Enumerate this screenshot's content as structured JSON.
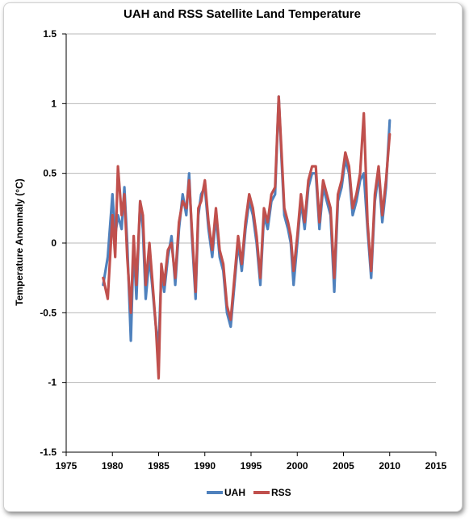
{
  "chart_data": {
    "type": "line",
    "title": "UAH and RSS Satellite Land Temperature",
    "xlabel": "",
    "ylabel": "Temperature Anomnaly (°C)",
    "xlim": [
      1975,
      2015
    ],
    "ylim": [
      -1.5,
      1.5
    ],
    "xticks": [
      1975,
      1980,
      1985,
      1990,
      1995,
      2000,
      2005,
      2010,
      2015
    ],
    "yticks": [
      -1.5,
      -1,
      -0.5,
      0,
      0.5,
      1,
      1.5
    ],
    "ytick_labels": [
      "-1.5",
      "-1",
      "-0.5",
      "0",
      "0.5",
      "1",
      "1.5"
    ],
    "grid": "horizontal",
    "legend_position": "bottom",
    "series": [
      {
        "name": "UAH",
        "color": "#4f81bd",
        "x": [
          1979.0,
          1979.5,
          1980.0,
          1980.3,
          1980.6,
          1981.0,
          1981.3,
          1981.6,
          1982.0,
          1982.3,
          1982.6,
          1983.0,
          1983.3,
          1983.6,
          1984.0,
          1984.3,
          1984.7,
          1985.0,
          1985.3,
          1985.6,
          1986.0,
          1986.4,
          1986.8,
          1987.2,
          1987.6,
          1988.0,
          1988.3,
          1988.6,
          1989.0,
          1989.3,
          1989.6,
          1990.0,
          1990.4,
          1990.8,
          1991.2,
          1991.6,
          1992.0,
          1992.4,
          1992.8,
          1993.2,
          1993.6,
          1994.0,
          1994.4,
          1994.8,
          1995.2,
          1995.6,
          1996.0,
          1996.4,
          1996.8,
          1997.2,
          1997.6,
          1998.0,
          1998.3,
          1998.6,
          1999.0,
          1999.3,
          1999.6,
          2000.0,
          2000.4,
          2000.8,
          2001.2,
          2001.6,
          2002.0,
          2002.4,
          2002.8,
          2003.2,
          2003.6,
          2004.0,
          2004.4,
          2004.8,
          2005.2,
          2005.6,
          2006.0,
          2006.4,
          2006.8,
          2007.2,
          2007.6,
          2008.0,
          2008.4,
          2008.8,
          2009.2,
          2009.6,
          2010.0
        ],
        "values": [
          -0.3,
          -0.1,
          0.35,
          0.05,
          0.2,
          0.1,
          0.4,
          0.0,
          -0.7,
          0.0,
          -0.4,
          0.3,
          0.1,
          -0.4,
          -0.1,
          -0.3,
          -0.6,
          -0.75,
          -0.2,
          -0.35,
          -0.1,
          0.05,
          -0.3,
          0.1,
          0.35,
          0.2,
          0.5,
          0.05,
          -0.4,
          0.2,
          0.35,
          0.4,
          0.1,
          -0.1,
          0.2,
          -0.1,
          -0.2,
          -0.5,
          -0.6,
          -0.3,
          0.0,
          -0.2,
          0.1,
          0.3,
          0.2,
          0.0,
          -0.3,
          0.2,
          0.1,
          0.3,
          0.35,
          1.05,
          0.6,
          0.2,
          0.1,
          0.0,
          -0.3,
          0.0,
          0.3,
          0.1,
          0.4,
          0.5,
          0.5,
          0.1,
          0.4,
          0.3,
          0.2,
          -0.35,
          0.3,
          0.4,
          0.6,
          0.5,
          0.2,
          0.3,
          0.45,
          0.5,
          0.1,
          -0.25,
          0.3,
          0.5,
          0.15,
          0.4,
          0.88
        ]
      },
      {
        "name": "RSS",
        "color": "#c0504d",
        "x": [
          1979.0,
          1979.5,
          1980.0,
          1980.3,
          1980.6,
          1981.0,
          1981.3,
          1981.6,
          1982.0,
          1982.3,
          1982.6,
          1983.0,
          1983.3,
          1983.6,
          1984.0,
          1984.3,
          1984.7,
          1985.0,
          1985.3,
          1985.6,
          1986.0,
          1986.4,
          1986.8,
          1987.2,
          1987.6,
          1988.0,
          1988.3,
          1988.6,
          1989.0,
          1989.3,
          1989.6,
          1990.0,
          1990.4,
          1990.8,
          1991.2,
          1991.6,
          1992.0,
          1992.4,
          1992.8,
          1993.2,
          1993.6,
          1994.0,
          1994.4,
          1994.8,
          1995.2,
          1995.6,
          1996.0,
          1996.4,
          1996.8,
          1997.2,
          1997.6,
          1998.0,
          1998.3,
          1998.6,
          1999.0,
          1999.3,
          1999.6,
          2000.0,
          2000.4,
          2000.8,
          2001.2,
          2001.6,
          2002.0,
          2002.4,
          2002.8,
          2003.2,
          2003.6,
          2004.0,
          2004.4,
          2004.8,
          2005.2,
          2005.6,
          2006.0,
          2006.4,
          2006.8,
          2007.2,
          2007.6,
          2008.0,
          2008.4,
          2008.8,
          2009.2,
          2009.6,
          2010.0
        ],
        "values": [
          -0.25,
          -0.4,
          0.2,
          -0.1,
          0.55,
          0.2,
          0.35,
          -0.1,
          -0.5,
          0.05,
          -0.3,
          0.3,
          0.2,
          -0.3,
          0.0,
          -0.25,
          -0.6,
          -0.97,
          -0.15,
          -0.3,
          -0.05,
          0.0,
          -0.25,
          0.15,
          0.3,
          0.25,
          0.45,
          0.1,
          -0.35,
          0.25,
          0.3,
          0.45,
          0.15,
          -0.05,
          0.25,
          -0.05,
          -0.15,
          -0.45,
          -0.55,
          -0.25,
          0.05,
          -0.15,
          0.15,
          0.35,
          0.25,
          0.05,
          -0.25,
          0.25,
          0.15,
          0.35,
          0.4,
          1.05,
          0.65,
          0.25,
          0.15,
          0.05,
          -0.2,
          0.05,
          0.35,
          0.15,
          0.45,
          0.55,
          0.55,
          0.15,
          0.45,
          0.35,
          0.25,
          -0.25,
          0.35,
          0.45,
          0.65,
          0.55,
          0.25,
          0.35,
          0.5,
          0.93,
          0.15,
          -0.2,
          0.35,
          0.55,
          0.2,
          0.45,
          0.78
        ]
      }
    ]
  }
}
